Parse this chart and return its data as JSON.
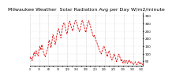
{
  "title": "Milwaukee Weather  Solar Radiation Avg per Day W/m2/minute",
  "title_fontsize": 4.5,
  "line_color": "#dd0000",
  "bg_color": "#ffffff",
  "grid_color": "#aaaaaa",
  "ylabel_right": true,
  "ylim": [
    20,
    370
  ],
  "yticks": [
    50,
    100,
    150,
    200,
    250,
    300,
    350
  ],
  "num_points": 365,
  "x_values": [
    0,
    1,
    2,
    3,
    4,
    5,
    6,
    7,
    8,
    9,
    10,
    11,
    12,
    13,
    14,
    15,
    16,
    17,
    18,
    19,
    20,
    21,
    22,
    23,
    24,
    25,
    26,
    27,
    28,
    29,
    30,
    31,
    32,
    33,
    34,
    35,
    36,
    37,
    38,
    39,
    40,
    41,
    42,
    43,
    44,
    45,
    46,
    47,
    48,
    49,
    50,
    51,
    52,
    53,
    54,
    55,
    56,
    57,
    58,
    59,
    60,
    61,
    62,
    63,
    64,
    65,
    66,
    67,
    68,
    69,
    70,
    71,
    72,
    73,
    74,
    75,
    76,
    77,
    78,
    79,
    80,
    81,
    82,
    83,
    84,
    85,
    86,
    87,
    88,
    89,
    90,
    91,
    92,
    93,
    94,
    95,
    96,
    97,
    98,
    99,
    100,
    101,
    102,
    103,
    104,
    105,
    106,
    107,
    108,
    109,
    110,
    111,
    112,
    113,
    114,
    115,
    116,
    117,
    118,
    119,
    120,
    121,
    122,
    123,
    124,
    125,
    126,
    127,
    128,
    129,
    130,
    131,
    132,
    133,
    134,
    135,
    136,
    137,
    138,
    139,
    140,
    141,
    142,
    143,
    144,
    145,
    146,
    147,
    148,
    149,
    150,
    151,
    152,
    153,
    154,
    155,
    156,
    157,
    158,
    159,
    160,
    161,
    162,
    163,
    164,
    165,
    166,
    167,
    168,
    169,
    170,
    171,
    172,
    173,
    174,
    175,
    176,
    177,
    178,
    179,
    180,
    181,
    182,
    183,
    184,
    185,
    186,
    187,
    188,
    189,
    190,
    191,
    192,
    193,
    194,
    195,
    196,
    197,
    198,
    199,
    200,
    201,
    202,
    203,
    204,
    205,
    206,
    207,
    208,
    209,
    210,
    211,
    212,
    213,
    214,
    215,
    216,
    217,
    218,
    219,
    220,
    221,
    222,
    223,
    224,
    225,
    226,
    227,
    228,
    229,
    230,
    231,
    232,
    233,
    234,
    235,
    236,
    237,
    238,
    239,
    240,
    241,
    242,
    243,
    244,
    245,
    246,
    247,
    248,
    249,
    250,
    251,
    252,
    253,
    254,
    255,
    256,
    257,
    258,
    259,
    260,
    261,
    262,
    263,
    264,
    265,
    266,
    267,
    268,
    269,
    270,
    271,
    272,
    273,
    274,
    275,
    276,
    277,
    278,
    279,
    280,
    281,
    282,
    283,
    284,
    285,
    286,
    287,
    288,
    289,
    290,
    291,
    292,
    293,
    294,
    295,
    296,
    297,
    298,
    299,
    300,
    301,
    302,
    303,
    304,
    305,
    306,
    307,
    308,
    309,
    310,
    311,
    312,
    313,
    314,
    315,
    316,
    317,
    318,
    319,
    320,
    321,
    322,
    323,
    324,
    325,
    326,
    327,
    328,
    329,
    330,
    331,
    332,
    333,
    334,
    335,
    336,
    337,
    338,
    339,
    340,
    341,
    342,
    343,
    344,
    345,
    346,
    347,
    348,
    349,
    350,
    351,
    352,
    353,
    354,
    355,
    356,
    357,
    358,
    359,
    360,
    361,
    362,
    363,
    364
  ],
  "y_values": [
    80,
    75,
    70,
    65,
    72,
    68,
    60,
    55,
    62,
    70,
    80,
    90,
    100,
    110,
    105,
    95,
    85,
    90,
    100,
    110,
    120,
    115,
    105,
    100,
    95,
    90,
    85,
    95,
    110,
    120,
    130,
    140,
    150,
    145,
    135,
    125,
    130,
    145,
    160,
    155,
    140,
    130,
    125,
    115,
    110,
    100,
    95,
    90,
    85,
    80,
    85,
    90,
    100,
    110,
    115,
    120,
    125,
    130,
    140,
    155,
    170,
    180,
    190,
    185,
    175,
    165,
    155,
    145,
    140,
    150,
    165,
    180,
    195,
    210,
    225,
    220,
    215,
    205,
    195,
    185,
    175,
    165,
    160,
    170,
    185,
    200,
    215,
    225,
    235,
    245,
    255,
    260,
    265,
    260,
    255,
    245,
    235,
    225,
    220,
    210,
    205,
    215,
    230,
    245,
    260,
    270,
    280,
    290,
    295,
    300,
    305,
    300,
    295,
    285,
    275,
    265,
    255,
    245,
    240,
    235,
    230,
    240,
    255,
    270,
    285,
    295,
    305,
    310,
    315,
    310,
    305,
    295,
    285,
    278,
    270,
    265,
    260,
    255,
    250,
    258,
    265,
    275,
    285,
    295,
    305,
    310,
    315,
    318,
    320,
    315,
    310,
    305,
    298,
    290,
    285,
    275,
    265,
    260,
    255,
    250,
    245,
    250,
    260,
    270,
    280,
    290,
    300,
    308,
    315,
    320,
    315,
    308,
    300,
    292,
    285,
    278,
    270,
    262,
    255,
    248,
    240,
    245,
    255,
    265,
    275,
    285,
    295,
    302,
    308,
    313,
    318,
    312,
    305,
    298,
    290,
    282,
    275,
    268,
    260,
    252,
    248,
    240,
    232,
    225,
    218,
    215,
    210,
    215,
    220,
    215,
    210,
    205,
    198,
    190,
    185,
    180,
    175,
    168,
    160,
    155,
    148,
    142,
    138,
    132,
    128,
    122,
    118,
    112,
    108,
    102,
    98,
    105,
    110,
    118,
    125,
    130,
    135,
    140,
    145,
    150,
    145,
    140,
    132,
    125,
    118,
    110,
    105,
    98,
    92,
    85,
    80,
    90,
    100,
    110,
    115,
    120,
    115,
    108,
    100,
    92,
    85,
    78,
    72,
    68,
    62,
    58,
    62,
    68,
    75,
    82,
    88,
    95,
    100,
    95,
    88,
    80,
    72,
    65,
    58,
    52,
    48,
    55,
    62,
    70,
    78,
    85,
    92,
    98,
    95,
    88,
    80,
    72,
    65,
    60,
    55,
    50,
    55,
    60,
    55,
    48,
    42,
    38,
    45,
    50,
    55,
    50,
    45,
    40,
    38,
    42,
    48,
    55,
    50,
    45,
    40,
    35,
    38,
    42,
    48,
    55,
    60,
    55,
    50,
    45,
    40,
    42,
    45,
    50,
    48,
    42,
    38,
    35,
    32,
    30,
    28,
    32,
    35,
    38,
    42,
    45,
    48,
    42,
    38,
    35,
    32,
    30,
    28,
    32,
    35,
    40,
    45,
    50,
    45,
    40,
    35,
    32,
    30,
    35,
    38,
    42,
    38,
    35,
    32,
    30,
    28
  ]
}
